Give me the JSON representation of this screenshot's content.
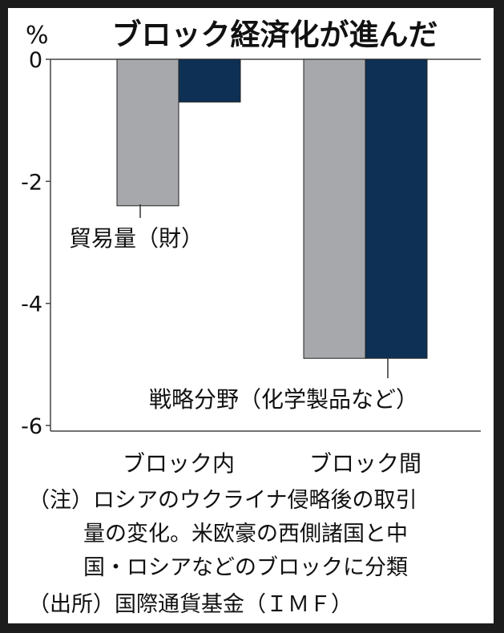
{
  "chart_data": {
    "type": "bar",
    "title": "ブロック経済化が進んだ",
    "unit_label": "%",
    "categories": [
      "ブロック内",
      "ブロック間"
    ],
    "series": [
      {
        "name": "貿易量（財）",
        "color": "#a6a8ab",
        "values": [
          -2.4,
          -4.9
        ]
      },
      {
        "name": "戦略分野（化学製品など）",
        "color": "#0e3054",
        "values": [
          -0.7,
          -4.9
        ]
      }
    ],
    "yticks": [
      "0",
      "-2",
      "-4",
      "-6"
    ],
    "yvalues": [
      0,
      -2,
      -4,
      -6
    ],
    "ylim": [
      -6,
      0
    ],
    "grid": false
  },
  "notes": {
    "note_line1": "（注）ロシアのウクライナ侵略後の取引",
    "note_line2": "量の変化。米欧豪の西側諸国と中",
    "note_line3": "国・ロシアなどのブロックに分類",
    "source": "（出所）国際通貨基金（ＩＭＦ）"
  }
}
